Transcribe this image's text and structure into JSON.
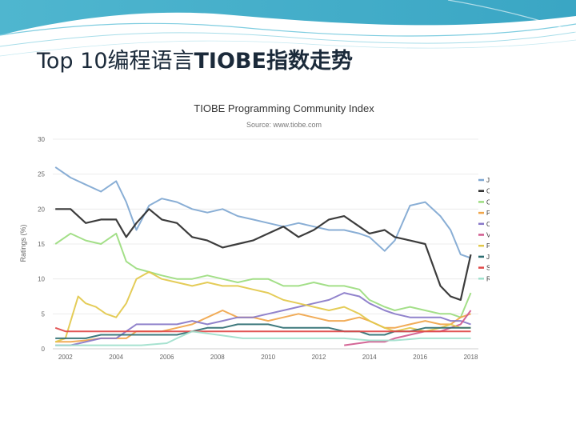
{
  "slide": {
    "title_prefix": "Top 10编程语言",
    "title_suffix": "TIOBE指数走势"
  },
  "chart_data": {
    "type": "line",
    "title": "TIOBE Programming Community Index",
    "subtitle": "Source: www.tiobe.com",
    "xlabel": "",
    "ylabel": "Ratings (%)",
    "xlim": [
      2001.5,
      2018.3
    ],
    "ylim": [
      0,
      30
    ],
    "xticks": [
      2002,
      2004,
      2006,
      2008,
      2010,
      2012,
      2014,
      2016,
      2018
    ],
    "yticks": [
      0,
      5,
      10,
      15,
      20,
      25,
      30
    ],
    "grid": true,
    "legend_position": "right",
    "series": [
      {
        "name": "Java",
        "color": "#7fa7d1",
        "x": [
          2001.6,
          2002.2,
          2002.8,
          2003.4,
          2004.0,
          2004.4,
          2004.8,
          2005.3,
          2005.8,
          2006.4,
          2007.0,
          2007.6,
          2008.2,
          2008.8,
          2009.4,
          2010.0,
          2010.6,
          2011.2,
          2011.8,
          2012.4,
          2013.0,
          2013.6,
          2014.0,
          2014.6,
          2015.0,
          2015.6,
          2016.2,
          2016.8,
          2017.2,
          2017.6,
          2018.0
        ],
        "values": [
          26.0,
          24.5,
          23.5,
          22.5,
          24.0,
          21.0,
          17.0,
          20.5,
          21.5,
          21.0,
          20.0,
          19.5,
          20.0,
          19.0,
          18.5,
          18.0,
          17.5,
          18.0,
          17.5,
          17.0,
          17.0,
          16.5,
          16.0,
          14.0,
          15.5,
          20.5,
          21.0,
          19.0,
          17.0,
          13.5,
          13.0
        ]
      },
      {
        "name": "C",
        "color": "#2b2b2b",
        "x": [
          2001.6,
          2002.2,
          2002.8,
          2003.4,
          2004.0,
          2004.4,
          2004.8,
          2005.3,
          2005.8,
          2006.4,
          2007.0,
          2007.6,
          2008.2,
          2008.8,
          2009.4,
          2010.0,
          2010.6,
          2011.2,
          2011.8,
          2012.4,
          2013.0,
          2013.6,
          2014.0,
          2014.6,
          2015.0,
          2015.6,
          2016.2,
          2016.8,
          2017.2,
          2017.6,
          2018.0
        ],
        "values": [
          20.0,
          20.0,
          18.0,
          18.5,
          18.5,
          16.0,
          18.0,
          20.0,
          18.5,
          18.0,
          16.0,
          15.5,
          14.5,
          15.0,
          15.5,
          16.5,
          17.5,
          16.0,
          17.0,
          18.5,
          19.0,
          17.5,
          16.5,
          17.0,
          16.0,
          15.5,
          15.0,
          9.0,
          7.5,
          7.0,
          13.5
        ]
      },
      {
        "name": "C++",
        "color": "#9bdc7e",
        "x": [
          2001.6,
          2002.2,
          2002.8,
          2003.4,
          2004.0,
          2004.4,
          2004.8,
          2005.3,
          2005.8,
          2006.4,
          2007.0,
          2007.6,
          2008.2,
          2008.8,
          2009.4,
          2010.0,
          2010.6,
          2011.2,
          2011.8,
          2012.4,
          2013.0,
          2013.6,
          2014.0,
          2014.6,
          2015.0,
          2015.6,
          2016.2,
          2016.8,
          2017.2,
          2017.6,
          2018.0
        ],
        "values": [
          15.0,
          16.5,
          15.5,
          15.0,
          16.5,
          12.5,
          11.5,
          11.0,
          10.5,
          10.0,
          10.0,
          10.5,
          10.0,
          9.5,
          10.0,
          10.0,
          9.0,
          9.0,
          9.5,
          9.0,
          9.0,
          8.5,
          7.0,
          6.0,
          5.5,
          6.0,
          5.5,
          5.0,
          5.0,
          4.5,
          8.0
        ]
      },
      {
        "name": "Python",
        "color": "#f0a54a",
        "x": [
          2001.6,
          2002.2,
          2002.8,
          2003.4,
          2004.0,
          2004.4,
          2004.8,
          2005.3,
          2005.8,
          2006.4,
          2007.0,
          2007.6,
          2008.2,
          2008.8,
          2009.4,
          2010.0,
          2010.6,
          2011.2,
          2011.8,
          2012.4,
          2013.0,
          2013.6,
          2014.0,
          2014.6,
          2015.0,
          2015.6,
          2016.2,
          2016.8,
          2017.2,
          2017.6,
          2018.0
        ],
        "values": [
          1.0,
          1.0,
          1.2,
          1.5,
          1.5,
          1.5,
          2.5,
          2.5,
          2.5,
          3.0,
          3.5,
          4.5,
          5.5,
          4.5,
          4.5,
          4.0,
          4.5,
          5.0,
          4.5,
          4.0,
          4.0,
          4.5,
          4.0,
          3.0,
          3.0,
          3.5,
          4.0,
          3.5,
          3.5,
          4.5,
          5.0
        ]
      },
      {
        "name": "C#",
        "color": "#8878c8",
        "x": [
          2001.6,
          2002.2,
          2002.8,
          2003.4,
          2004.0,
          2004.4,
          2004.8,
          2005.3,
          2005.8,
          2006.4,
          2007.0,
          2007.6,
          2008.2,
          2008.8,
          2009.4,
          2010.0,
          2010.6,
          2011.2,
          2011.8,
          2012.4,
          2013.0,
          2013.6,
          2014.0,
          2014.6,
          2015.0,
          2015.6,
          2016.2,
          2016.8,
          2017.2,
          2017.6,
          2018.0
        ],
        "values": [
          0.5,
          0.5,
          1.0,
          1.5,
          1.5,
          2.5,
          3.5,
          3.5,
          3.5,
          3.5,
          4.0,
          3.5,
          4.0,
          4.5,
          4.5,
          5.0,
          5.5,
          6.0,
          6.5,
          7.0,
          8.0,
          7.5,
          6.5,
          5.5,
          5.0,
          4.5,
          4.5,
          4.5,
          4.0,
          4.0,
          3.5
        ]
      },
      {
        "name": "Visual Basic .NET",
        "color": "#d05a8e",
        "x": [
          2001.6,
          2013.0,
          2013.6,
          2014.0,
          2014.6,
          2015.0,
          2015.6,
          2016.2,
          2016.8,
          2017.2,
          2017.6,
          2018.0
        ],
        "values": [
          null,
          0.5,
          0.8,
          1.0,
          1.0,
          1.5,
          2.0,
          2.5,
          2.5,
          3.0,
          3.5,
          5.5
        ]
      },
      {
        "name": "PHP",
        "color": "#e2c84a",
        "x": [
          2001.6,
          2002.0,
          2002.5,
          2002.8,
          2003.2,
          2003.6,
          2004.0,
          2004.4,
          2004.8,
          2005.3,
          2005.8,
          2006.4,
          2007.0,
          2007.6,
          2008.2,
          2008.8,
          2009.4,
          2010.0,
          2010.6,
          2011.2,
          2011.8,
          2012.4,
          2013.0,
          2013.6,
          2014.0,
          2014.6,
          2015.0,
          2015.6,
          2016.2,
          2016.8,
          2017.2,
          2017.6,
          2018.0
        ],
        "values": [
          1.0,
          1.5,
          7.5,
          6.5,
          6.0,
          5.0,
          4.5,
          6.5,
          10.0,
          11.0,
          10.0,
          9.5,
          9.0,
          9.5,
          9.0,
          9.0,
          8.5,
          8.0,
          7.0,
          6.5,
          6.0,
          5.5,
          6.0,
          5.0,
          4.0,
          3.0,
          2.5,
          3.0,
          2.5,
          3.0,
          3.5,
          3.0,
          3.0
        ]
      },
      {
        "name": "JavaScript",
        "color": "#2e6e72",
        "x": [
          2001.6,
          2002.2,
          2002.8,
          2003.4,
          2004.0,
          2004.4,
          2004.8,
          2005.3,
          2005.8,
          2006.4,
          2007.0,
          2007.6,
          2008.2,
          2008.8,
          2009.4,
          2010.0,
          2010.6,
          2011.2,
          2011.8,
          2012.4,
          2013.0,
          2013.6,
          2014.0,
          2014.6,
          2015.0,
          2015.6,
          2016.2,
          2016.8,
          2017.2,
          2017.6,
          2018.0
        ],
        "values": [
          1.5,
          1.5,
          1.5,
          2.0,
          2.0,
          2.0,
          2.0,
          2.0,
          2.0,
          2.0,
          2.5,
          3.0,
          3.0,
          3.5,
          3.5,
          3.5,
          3.0,
          3.0,
          3.0,
          3.0,
          2.5,
          2.5,
          2.0,
          2.0,
          2.5,
          2.5,
          3.0,
          3.0,
          3.0,
          3.0,
          3.0
        ]
      },
      {
        "name": "SQL",
        "color": "#e04848",
        "x": [
          2001.6,
          2002.0,
          2003.0,
          2004.0,
          2005.0,
          2006.0,
          2007.0,
          2008.0,
          2009.0,
          2010.0,
          2011.0,
          2012.0,
          2013.0,
          2014.0,
          2015.0,
          2016.0,
          2017.0,
          2018.0
        ],
        "values": [
          3.0,
          2.5,
          2.5,
          2.5,
          2.5,
          2.5,
          2.5,
          2.5,
          2.5,
          2.5,
          2.5,
          2.5,
          2.5,
          2.5,
          2.5,
          2.5,
          2.5,
          2.5
        ]
      },
      {
        "name": "Ruby",
        "color": "#9fe0cc",
        "x": [
          2001.6,
          2003.0,
          2004.0,
          2005.0,
          2006.0,
          2006.4,
          2007.0,
          2008.0,
          2009.0,
          2010.0,
          2011.0,
          2012.0,
          2013.0,
          2014.0,
          2015.0,
          2016.0,
          2017.0,
          2018.0
        ],
        "values": [
          0.5,
          0.5,
          0.5,
          0.5,
          0.8,
          1.5,
          2.5,
          2.0,
          1.5,
          1.5,
          1.5,
          1.5,
          1.5,
          1.2,
          1.2,
          1.5,
          1.5,
          1.5
        ]
      }
    ]
  }
}
